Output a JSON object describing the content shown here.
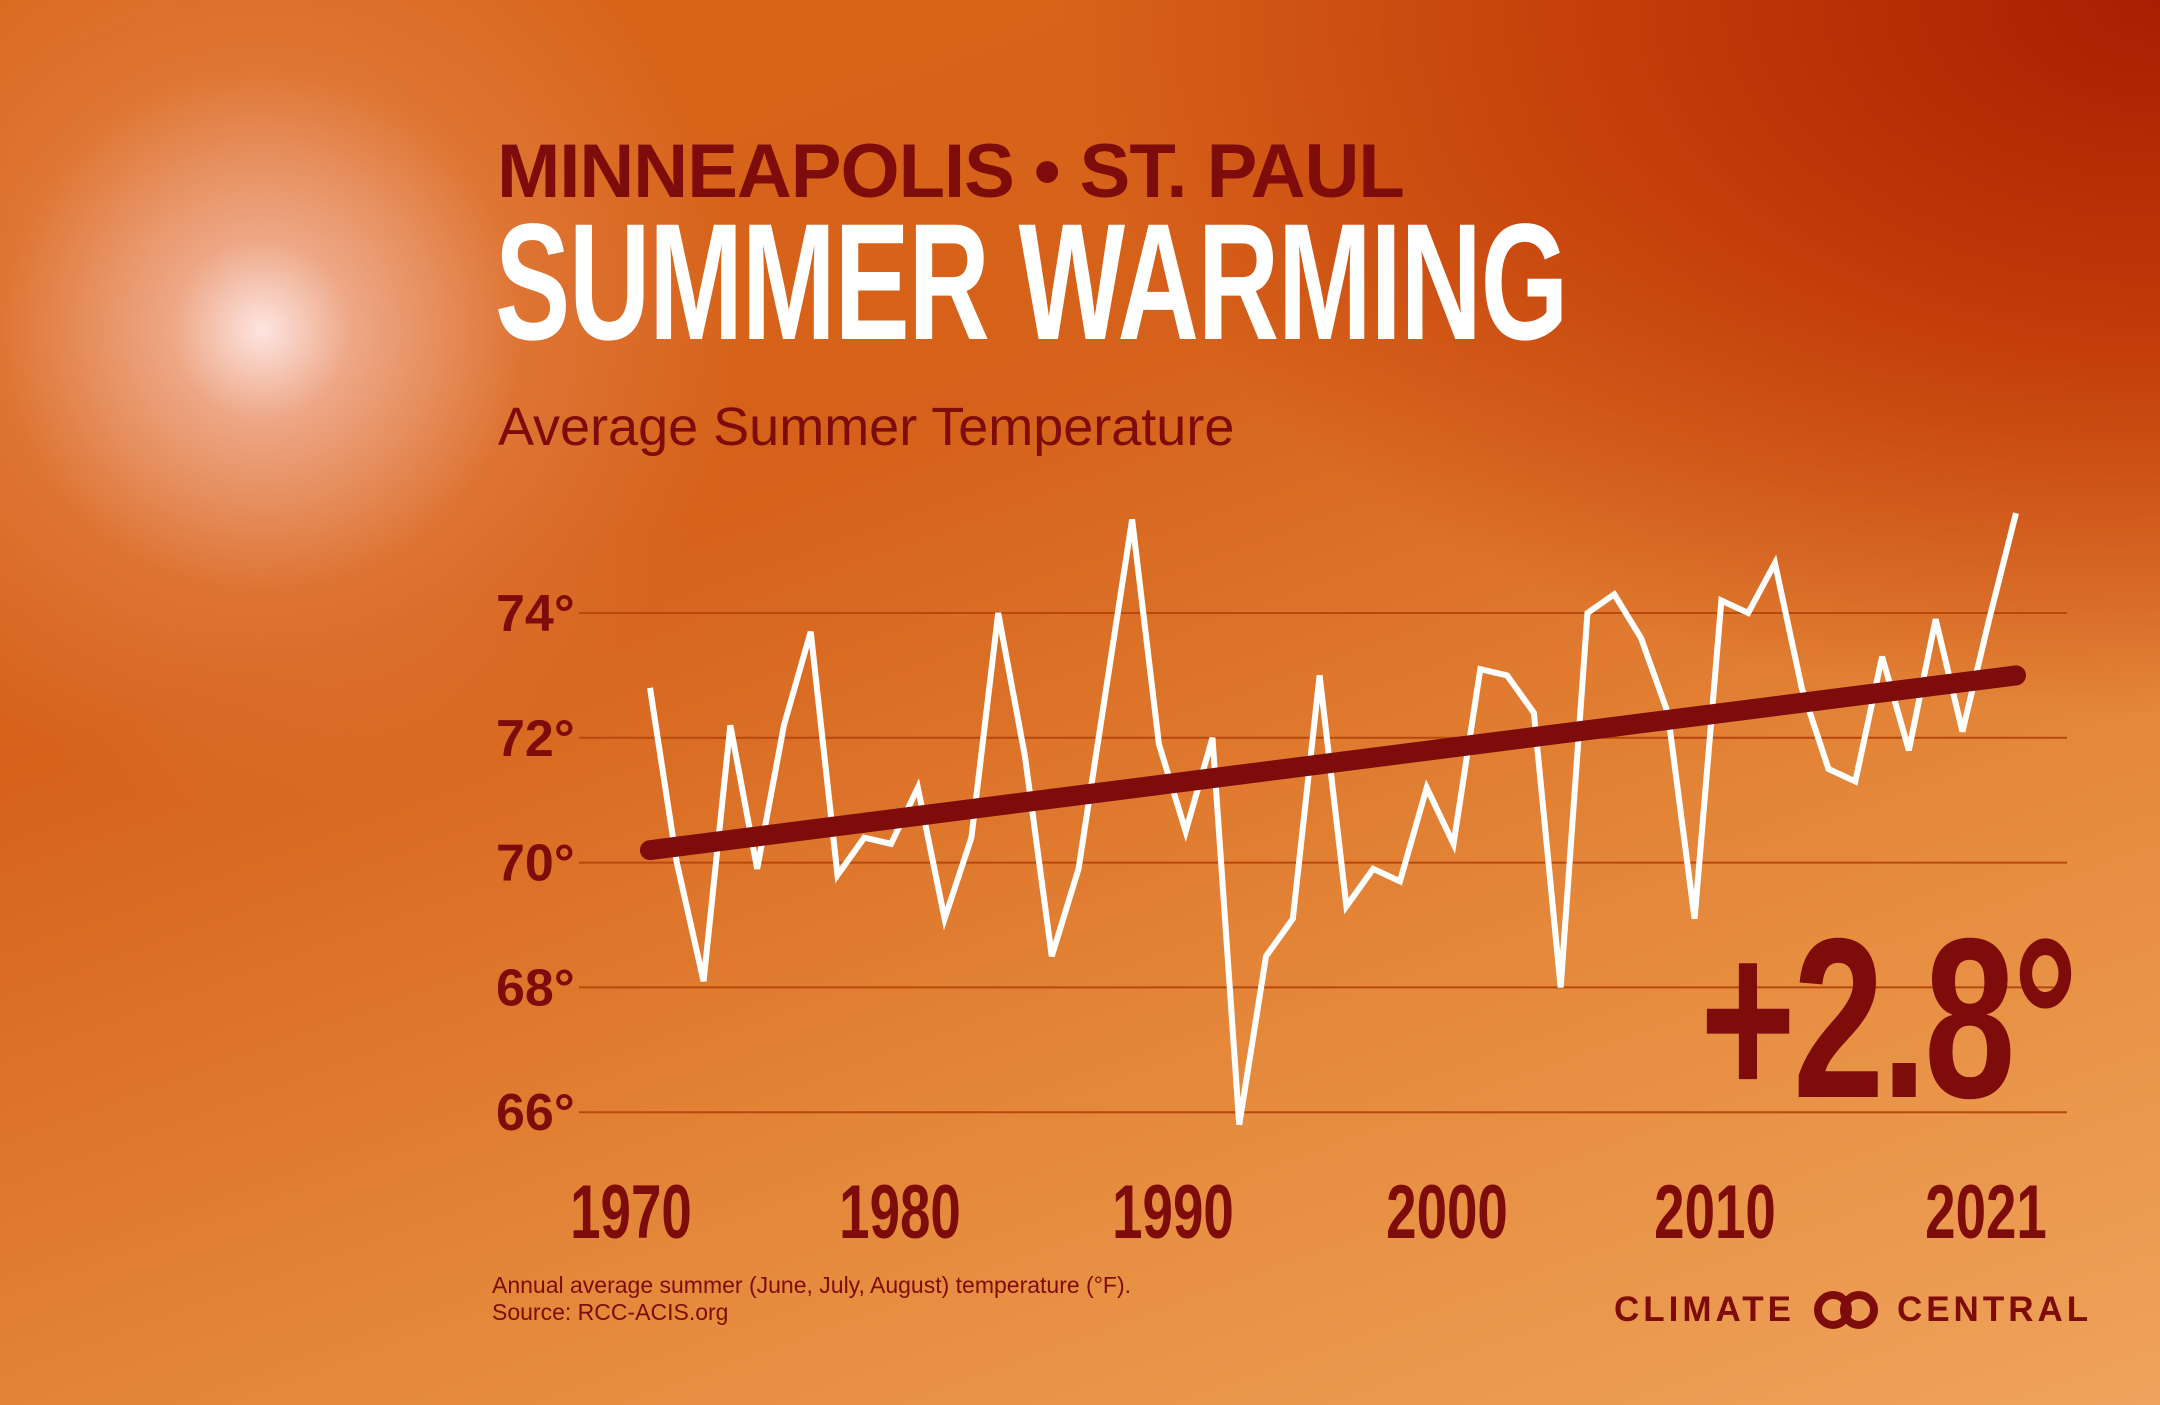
{
  "header": {
    "title_line1": "MINNEAPOLIS • ST. PAUL",
    "title_line2": "SUMMER WARMING",
    "subtitle": "Average Summer Temperature"
  },
  "chart_data": {
    "type": "line",
    "title": "Average Summer Temperature",
    "xlabel": "",
    "ylabel": "",
    "x_tick_labels": [
      "1970",
      "1980",
      "1990",
      "2000",
      "2010",
      "2021"
    ],
    "y_tick_labels": [
      "74°",
      "72°",
      "70°",
      "68°",
      "66°"
    ],
    "y_ticks": [
      74,
      72,
      70,
      68,
      66
    ],
    "xlim": [
      1970,
      2021
    ],
    "ylim": [
      65.5,
      76
    ],
    "grid": true,
    "x": [
      1970,
      1971,
      1972,
      1973,
      1974,
      1975,
      1976,
      1977,
      1978,
      1979,
      1980,
      1981,
      1982,
      1983,
      1984,
      1985,
      1986,
      1987,
      1988,
      1989,
      1990,
      1991,
      1992,
      1993,
      1994,
      1995,
      1996,
      1997,
      1998,
      1999,
      2000,
      2001,
      2002,
      2003,
      2004,
      2005,
      2006,
      2007,
      2008,
      2009,
      2010,
      2011,
      2012,
      2013,
      2014,
      2015,
      2016,
      2017,
      2018,
      2019,
      2020,
      2021
    ],
    "series": [
      {
        "values": [
          72.8,
          70.0,
          68.1,
          72.2,
          69.9,
          72.2,
          73.7,
          69.8,
          70.4,
          70.3,
          71.2,
          69.1,
          70.4,
          74.0,
          71.7,
          68.5,
          69.9,
          72.7,
          75.5,
          71.9,
          70.5,
          72.0,
          65.8,
          68.5,
          69.1,
          73.0,
          69.3,
          69.9,
          69.7,
          71.2,
          70.3,
          73.1,
          73.0,
          72.4,
          68.0,
          74.0,
          74.3,
          73.6,
          72.4,
          69.1,
          74.2,
          74.0,
          74.8,
          72.8,
          71.5,
          71.3,
          73.3,
          71.8,
          73.9,
          72.1,
          73.9,
          75.6
        ],
        "color": "#ffffff"
      },
      {
        "values": [
          70.2,
          73.0
        ],
        "x": [
          1970,
          2021
        ],
        "color": "#7d0c0a",
        "kind": "trend"
      }
    ],
    "annotation": "+2.8°"
  },
  "footer": {
    "note_line1": "Annual average summer (June, July, August) temperature (°F).",
    "note_line2": "Source: RCC-ACIS.org",
    "logo_left": "CLIMATE",
    "logo_right": "CENTRAL",
    "logo_icon": "linked-circles-icon"
  },
  "colors": {
    "dark_red": "#7d0c0a",
    "line": "#ffffff",
    "gridline": "#b8480e"
  }
}
